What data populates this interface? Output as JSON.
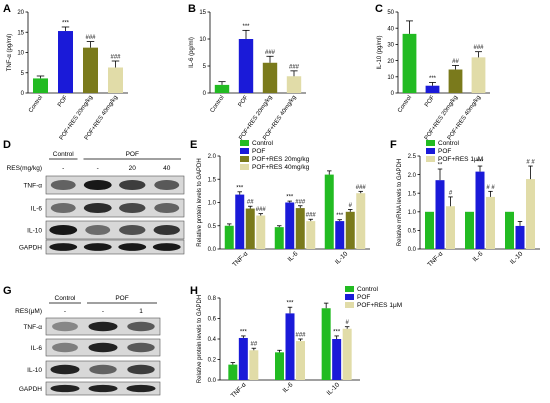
{
  "colors": {
    "control": "#22bb22",
    "pof": "#1a1ad8",
    "res20": "#7a7a1c",
    "res40": "#e1dca8",
    "res1": "#e1dca8"
  },
  "charts": [
    {
      "id": "A",
      "panel_label": "A",
      "ylabel": "TNF-α (pg/ml)",
      "ylim": [
        0,
        20
      ],
      "yticks": [
        0,
        5,
        10,
        15,
        20
      ],
      "categories": [
        "Control",
        "POF",
        "POF+RES 20mg/kg",
        "POF+RES 40mg/kg"
      ],
      "colors": [
        "#22bb22",
        "#1a1ad8",
        "#7a7a1c",
        "#e1dca8"
      ],
      "values": [
        3.6,
        15.3,
        11.2,
        6.3
      ],
      "errors": [
        0.6,
        1.0,
        1.5,
        1.6
      ],
      "sig": [
        "",
        "***",
        "###",
        "###"
      ]
    },
    {
      "id": "B",
      "panel_label": "B",
      "ylabel": "IL-6 (pg/ml)",
      "ylim": [
        0,
        15
      ],
      "yticks": [
        0,
        5,
        10,
        15
      ],
      "categories": [
        "Control",
        "POF",
        "POF+RES 20mg/kg",
        "POF+RES 40mg/kg"
      ],
      "colors": [
        "#22bb22",
        "#1a1ad8",
        "#7a7a1c",
        "#e1dca8"
      ],
      "values": [
        1.5,
        10.0,
        5.6,
        3.1
      ],
      "errors": [
        0.6,
        1.6,
        1.2,
        1.0
      ],
      "sig": [
        "",
        "***",
        "###",
        "###"
      ]
    },
    {
      "id": "C",
      "panel_label": "C",
      "ylabel": "IL-10 (pg/ml)",
      "ylim": [
        0,
        50
      ],
      "yticks": [
        0,
        10,
        20,
        30,
        40,
        50
      ],
      "categories": [
        "Control",
        "POF",
        "POF+RES 20mg/kg",
        "POF+RES 40mg/kg"
      ],
      "colors": [
        "#22bb22",
        "#1a1ad8",
        "#7a7a1c",
        "#e1dca8"
      ],
      "values": [
        36.5,
        4.5,
        14.5,
        22.0
      ],
      "errors": [
        8.0,
        2.0,
        2.5,
        3.5
      ],
      "sig": [
        "",
        "***",
        "##",
        "###"
      ]
    },
    {
      "id": "E",
      "panel_label": "E",
      "ylabel": "Relative protein levels to GAPDH",
      "ylim": [
        0,
        2.0
      ],
      "yticks": [
        0.0,
        0.5,
        1.0,
        1.5,
        2.0
      ],
      "categories": [
        "TNF-α",
        "IL-6",
        "IL-10"
      ],
      "series": [
        {
          "name": "Control",
          "color": "#22bb22",
          "values": [
            0.5,
            0.47,
            1.6
          ],
          "errors": [
            0.04,
            0.03,
            0.08
          ],
          "sig": [
            "",
            "",
            ""
          ]
        },
        {
          "name": "POF",
          "color": "#1a1ad8",
          "values": [
            1.17,
            1.0,
            0.6
          ],
          "errors": [
            0.06,
            0.03,
            0.03
          ],
          "sig": [
            "***",
            "***",
            "***"
          ]
        },
        {
          "name": "POF+RES 20mg/kg",
          "color": "#7a7a1c",
          "values": [
            0.87,
            0.88,
            0.8
          ],
          "errors": [
            0.05,
            0.05,
            0.05
          ],
          "sig": [
            "##",
            "###",
            "#"
          ]
        },
        {
          "name": "POF+RES 40mg/kg",
          "color": "#e1dca8",
          "values": [
            0.72,
            0.6,
            1.2
          ],
          "errors": [
            0.04,
            0.04,
            0.04
          ],
          "sig": [
            "###",
            "###",
            "###"
          ]
        }
      ]
    },
    {
      "id": "F",
      "panel_label": "F",
      "ylabel": "Relative mRNA levels to GAPDH",
      "ylim": [
        0,
        2.5
      ],
      "yticks": [
        0.0,
        0.5,
        1.0,
        1.5,
        2.0,
        2.5
      ],
      "categories": [
        "TNF-α",
        "IL-6",
        "IL-10"
      ],
      "series": [
        {
          "name": "Control",
          "color": "#22bb22",
          "values": [
            1.0,
            1.0,
            1.0
          ],
          "errors": [
            0,
            0,
            0
          ],
          "sig": [
            "",
            "",
            ""
          ]
        },
        {
          "name": "POF",
          "color": "#1a1ad8",
          "values": [
            1.85,
            2.08,
            0.62
          ],
          "errors": [
            0.3,
            0.15,
            0.12
          ],
          "sig": [
            "**",
            "***",
            ""
          ]
        },
        {
          "name": "POF+RES 1μM",
          "color": "#e1dca8",
          "values": [
            1.15,
            1.4,
            1.88
          ],
          "errors": [
            0.25,
            0.15,
            0.35
          ],
          "sig": [
            "#",
            "# #",
            "# #"
          ]
        }
      ]
    },
    {
      "id": "H",
      "panel_label": "H",
      "ylabel": "Relative protein levels to GAPDH",
      "ylim": [
        0,
        0.8
      ],
      "yticks": [
        0.0,
        0.2,
        0.4,
        0.6,
        0.8
      ],
      "categories": [
        "TNF-α",
        "IL-6",
        "IL-10"
      ],
      "series": [
        {
          "name": "Control",
          "color": "#22bb22",
          "values": [
            0.15,
            0.27,
            0.7
          ],
          "errors": [
            0.02,
            0.02,
            0.05
          ],
          "sig": [
            "",
            "",
            ""
          ]
        },
        {
          "name": "POF",
          "color": "#1a1ad8",
          "values": [
            0.41,
            0.65,
            0.4
          ],
          "errors": [
            0.02,
            0.06,
            0.03
          ],
          "sig": [
            "***",
            "***",
            "***"
          ]
        },
        {
          "name": "POF+RES 1μM",
          "color": "#e1dca8",
          "values": [
            0.29,
            0.38,
            0.5
          ],
          "errors": [
            0.02,
            0.02,
            0.02
          ],
          "sig": [
            "##",
            "###",
            "#"
          ]
        }
      ]
    }
  ],
  "blots": [
    {
      "id": "D",
      "panel_label": "D",
      "groups": [
        "Control",
        "POF"
      ],
      "treatment_label": "RES(mg/kg)",
      "lane_labels": [
        "-",
        "-",
        "20",
        "40"
      ],
      "rows": [
        "TNF-α",
        "IL-6",
        "IL-10",
        "GAPDH"
      ]
    },
    {
      "id": "G",
      "panel_label": "G",
      "groups": [
        "Control",
        "POF"
      ],
      "treatment_label": "RES(μM)",
      "lane_labels": [
        "-",
        "-",
        "1"
      ],
      "rows": [
        "TNF-α",
        "IL-6",
        "IL-10",
        "GAPDH"
      ]
    }
  ]
}
